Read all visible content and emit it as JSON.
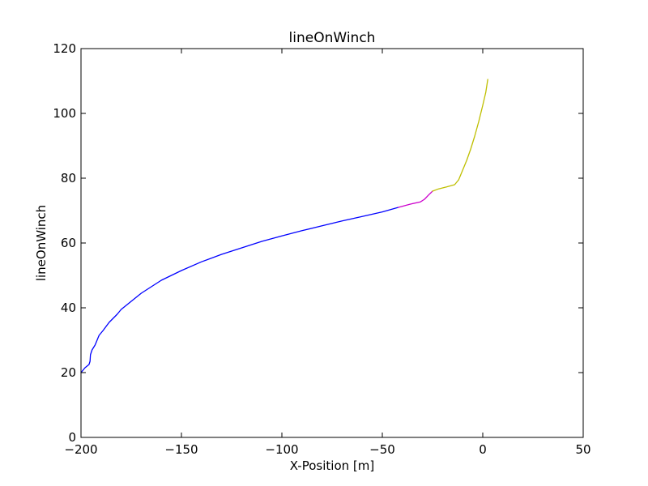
{
  "chart_data": {
    "type": "line",
    "title": "lineOnWinch",
    "xlabel": "X-Position [m]",
    "ylabel": "lineOnWinch",
    "xlim": [
      -200,
      50
    ],
    "ylim": [
      0,
      120
    ],
    "xticks": [
      -200,
      -150,
      -100,
      -50,
      0,
      50
    ],
    "yticks": [
      0,
      20,
      40,
      60,
      80,
      100,
      120
    ],
    "xtick_labels": [
      "−200",
      "−150",
      "−100",
      "−50",
      "0",
      "50"
    ],
    "ytick_labels": [
      "0",
      "20",
      "40",
      "60",
      "80",
      "100",
      "120"
    ],
    "grid": false,
    "series": [
      {
        "color": "#0000ff",
        "points": [
          [
            -200,
            20
          ],
          [
            -198,
            21.5
          ],
          [
            -196,
            22.5
          ],
          [
            -195.5,
            23.5
          ],
          [
            -195.3,
            25.5
          ],
          [
            -194.5,
            27
          ],
          [
            -193,
            28.5
          ],
          [
            -192,
            30
          ],
          [
            -191,
            31.5
          ],
          [
            -189,
            33
          ],
          [
            -186,
            35.5
          ],
          [
            -182,
            38
          ],
          [
            -180,
            39.5
          ],
          [
            -175,
            42
          ],
          [
            -170,
            44.5
          ],
          [
            -160,
            48.5
          ],
          [
            -150,
            51.5
          ],
          [
            -140,
            54.2
          ],
          [
            -130,
            56.5
          ],
          [
            -120,
            58.5
          ],
          [
            -110,
            60.5
          ],
          [
            -100,
            62.2
          ],
          [
            -90,
            63.8
          ],
          [
            -80,
            65.3
          ],
          [
            -70,
            66.8
          ],
          [
            -60,
            68.2
          ],
          [
            -50,
            69.6
          ],
          [
            -42,
            71
          ]
        ]
      },
      {
        "color": "#cc00cc",
        "points": [
          [
            -42,
            71
          ],
          [
            -36,
            72
          ],
          [
            -31,
            72.7
          ],
          [
            -29,
            73.5
          ],
          [
            -27,
            74.8
          ],
          [
            -25,
            76
          ]
        ]
      },
      {
        "color": "#bfbf00",
        "points": [
          [
            -25,
            76
          ],
          [
            -22,
            76.7
          ],
          [
            -18,
            77.3
          ],
          [
            -14,
            78
          ],
          [
            -12,
            79.5
          ],
          [
            -10,
            82.5
          ],
          [
            -8,
            85.5
          ],
          [
            -6,
            89
          ],
          [
            -4,
            93
          ],
          [
            -2,
            97.5
          ],
          [
            0,
            102.5
          ],
          [
            1.5,
            106.5
          ],
          [
            2.5,
            110.5
          ]
        ]
      }
    ]
  }
}
